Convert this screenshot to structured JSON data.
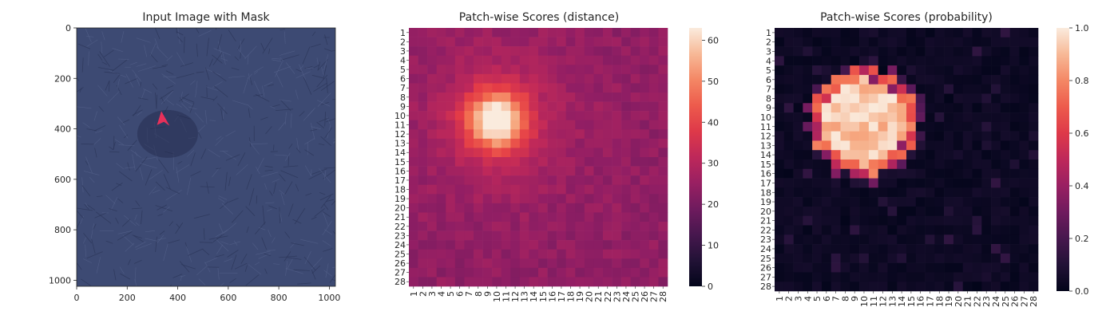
{
  "chart_data": [
    {
      "type": "image",
      "title": "Input Image with Mask",
      "xticks": [
        0,
        200,
        400,
        600,
        800,
        1000
      ],
      "yticks": [
        0,
        200,
        400,
        600,
        800,
        1000
      ],
      "xlim": [
        0,
        1024
      ],
      "ylim": [
        1024,
        0
      ],
      "colors": {
        "texture": "#3d4a73",
        "texture_light": "#56638c",
        "texture_dark": "#2b3558",
        "mask": "#e8305a"
      }
    },
    {
      "type": "heatmap",
      "title": "Patch-wise Scores (distance)",
      "rows": 28,
      "cols": 28,
      "row_labels": [
        "1",
        "2",
        "3",
        "4",
        "5",
        "6",
        "7",
        "8",
        "9",
        "10",
        "11",
        "12",
        "13",
        "14",
        "15",
        "16",
        "17",
        "18",
        "19",
        "20",
        "21",
        "22",
        "23",
        "24",
        "25",
        "26",
        "27",
        "28"
      ],
      "col_labels": [
        "1",
        "2",
        "3",
        "4",
        "5",
        "6",
        "7",
        "8",
        "9",
        "10",
        "11",
        "12",
        "13",
        "14",
        "15",
        "16",
        "17",
        "18",
        "19",
        "20",
        "21",
        "22",
        "23",
        "24",
        "25",
        "26",
        "27",
        "28"
      ],
      "colorbar_ticks": [
        0,
        10,
        20,
        30,
        40,
        50,
        60
      ],
      "vmin": 0,
      "vmax": 63,
      "colormap": "rocket",
      "anomaly_center": {
        "row": 10.5,
        "col": 10
      },
      "peak_value": 63,
      "background_value": 24
    },
    {
      "type": "heatmap",
      "title": "Patch-wise Scores (probability)",
      "rows": 28,
      "cols": 28,
      "row_labels": [
        "1",
        "2",
        "3",
        "4",
        "5",
        "6",
        "7",
        "8",
        "9",
        "10",
        "11",
        "12",
        "13",
        "14",
        "15",
        "16",
        "17",
        "18",
        "19",
        "20",
        "21",
        "22",
        "23",
        "24",
        "25",
        "26",
        "27",
        "28"
      ],
      "col_labels": [
        "1",
        "2",
        "3",
        "4",
        "5",
        "6",
        "7",
        "8",
        "9",
        "10",
        "11",
        "12",
        "13",
        "14",
        "15",
        "16",
        "17",
        "18",
        "19",
        "20",
        "21",
        "22",
        "23",
        "24",
        "25",
        "26",
        "27",
        "28"
      ],
      "colorbar_ticks": [
        "0.0",
        "0.2",
        "0.4",
        "0.6",
        "0.8",
        "1.0"
      ],
      "vmin": 0,
      "vmax": 1,
      "colormap": "rocket",
      "anomaly_center": {
        "row": 10.5,
        "col": 10
      },
      "peak_value": 1.0,
      "background_value": 0.02
    }
  ]
}
